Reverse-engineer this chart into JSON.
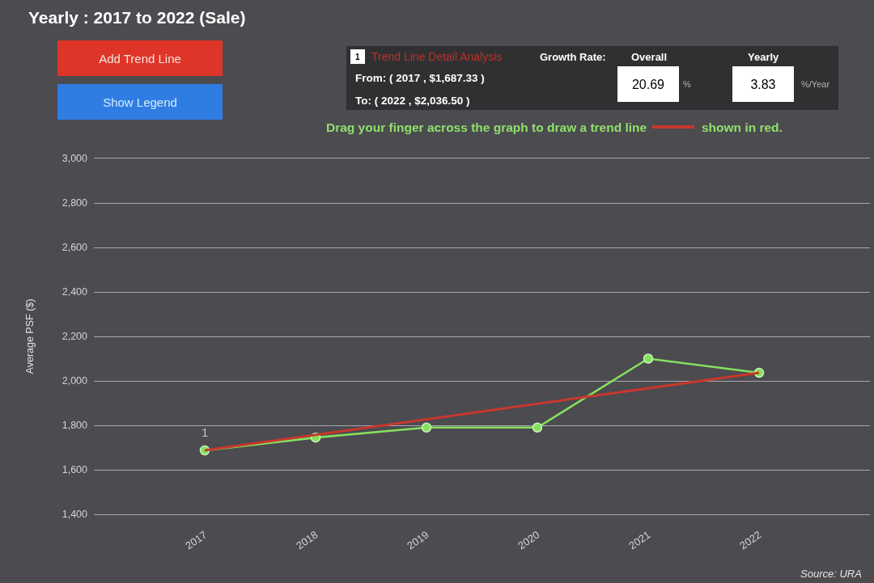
{
  "chart_data": {
    "type": "line",
    "title": "Yearly : 2017 to 2022 (Sale)",
    "ylabel": "Average PSF ($)",
    "x": [
      2017,
      2018,
      2019,
      2020,
      2021,
      2022
    ],
    "series": [
      {
        "color": "#86e05e",
        "values": [
          1687.33,
          1745,
          1790,
          1790,
          2100,
          2036.5
        ]
      },
      {
        "type": "line",
        "x": [
          2017,
          2022
        ],
        "values": [
          1687.33,
          2036.5
        ],
        "color": "#c8372d",
        "marker": "none"
      }
    ],
    "xlim": [
      2016,
      2023
    ],
    "xticks": [
      2017,
      2018,
      2019,
      2020,
      2021,
      2022
    ],
    "ylim": [
      1400,
      3000
    ],
    "yticks": [
      {
        "value": 1400,
        "label": "1,400"
      },
      {
        "value": 1600,
        "label": "1,600"
      },
      {
        "value": 1800,
        "label": "1,800"
      },
      {
        "value": 2000,
        "label": "2,000"
      },
      {
        "value": 2200,
        "label": "2,200"
      },
      {
        "value": 2400,
        "label": "2,400"
      },
      {
        "value": 2600,
        "label": "2,600"
      },
      {
        "value": 2800,
        "label": "2,800"
      },
      {
        "value": 3000,
        "label": "3,000"
      }
    ],
    "grid": "y",
    "marker": "circle",
    "line_style": "solid",
    "annotations": [
      "Add Trend Line",
      "Show Legend",
      "1",
      "Trend Line Detail Analysis",
      "Growth Rate:",
      "Overall",
      "Yearly",
      "From: ( 2017 , $1,687.33 )",
      "To: ( 2022 , $2,036.50 )",
      "20.69",
      "%",
      "3.83",
      "%/Year",
      "Drag your finger across the graph to draw a trend line",
      "shown in red.",
      {
        "text": "1",
        "x": 2017,
        "y": 1687.33
      },
      "Source: URA"
    ]
  }
}
